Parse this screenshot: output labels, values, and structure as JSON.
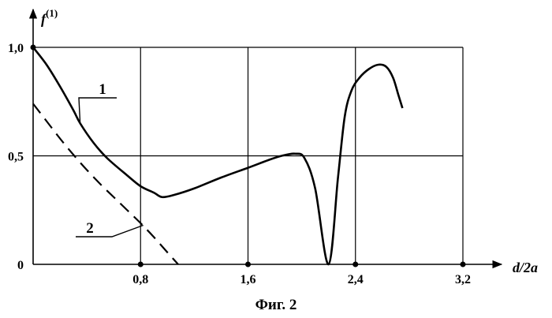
{
  "chart_data": {
    "type": "line",
    "caption": "Фиг. 2",
    "xlabel": "d/2a",
    "ylabel": {
      "base": "f",
      "sup": "(1)"
    },
    "xlim": [
      0,
      3.2
    ],
    "ylim": [
      0,
      1.0
    ],
    "x_ticks": [
      {
        "value": 0.8,
        "label": "0,8"
      },
      {
        "value": 1.6,
        "label": "1,6"
      },
      {
        "value": 2.4,
        "label": "2,4"
      },
      {
        "value": 3.2,
        "label": "3,2"
      }
    ],
    "y_ticks": [
      {
        "value": 0,
        "label": "0"
      },
      {
        "value": 0.5,
        "label": "0,5"
      },
      {
        "value": 1.0,
        "label": "1,0"
      }
    ],
    "grid": true,
    "series": [
      {
        "label": "1",
        "line_style": "solid",
        "x": [
          0,
          0.1,
          0.2,
          0.3,
          0.35,
          0.45,
          0.55,
          0.7,
          0.8,
          0.9,
          0.96,
          1.05,
          1.2,
          1.4,
          1.6,
          1.75,
          1.85,
          1.95,
          2.02,
          2.1,
          2.2,
          2.27,
          2.32,
          2.37,
          2.43,
          2.5,
          2.57,
          2.63,
          2.68,
          2.72,
          2.75
        ],
        "y": [
          1.0,
          0.92,
          0.82,
          0.71,
          0.65,
          0.56,
          0.49,
          0.41,
          0.36,
          0.33,
          0.31,
          0.32,
          0.35,
          0.4,
          0.445,
          0.48,
          0.5,
          0.51,
          0.49,
          0.35,
          0.0,
          0.4,
          0.68,
          0.8,
          0.86,
          0.9,
          0.92,
          0.91,
          0.86,
          0.78,
          0.72
        ]
      },
      {
        "label": "2",
        "line_style": "dashed",
        "x": [
          0,
          0.1,
          0.2,
          0.3,
          0.4,
          0.5,
          0.6,
          0.7,
          0.8,
          0.9,
          1.0,
          1.08
        ],
        "y": [
          0.74,
          0.66,
          0.58,
          0.505,
          0.435,
          0.37,
          0.31,
          0.25,
          0.19,
          0.125,
          0.055,
          0.0
        ]
      }
    ],
    "annotations": [
      {
        "text": "1",
        "series": 0
      },
      {
        "text": "2",
        "series": 1
      }
    ]
  }
}
